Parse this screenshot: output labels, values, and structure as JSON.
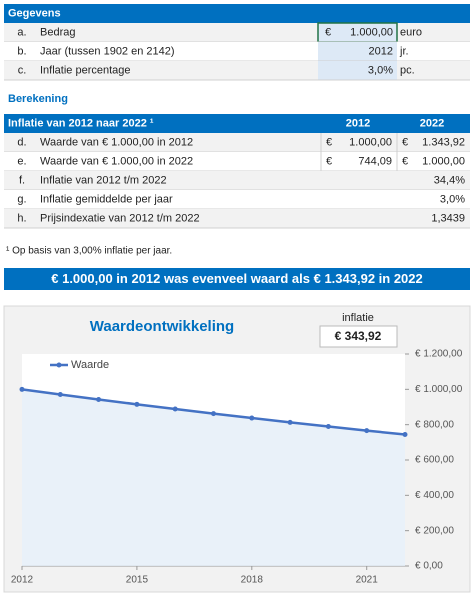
{
  "gegevens": {
    "title": "Gegevens",
    "rows": [
      {
        "letter": "a.",
        "label": "Bedrag",
        "prefix": "€",
        "value": "1.000,00",
        "unit": "euro"
      },
      {
        "letter": "b.",
        "label": "Jaar (tussen 1902 en 2142)",
        "value": "2012",
        "unit": "jr."
      },
      {
        "letter": "c.",
        "label": "Inflatie percentage",
        "value": "3,0%",
        "unit": "pc."
      }
    ]
  },
  "berekening": {
    "title": "Berekening",
    "header": [
      "Inflatie van 2012 naar 2022 ¹",
      "2012",
      "2022"
    ],
    "rows": [
      {
        "letter": "d.",
        "label": "Waarde van € 1.000,00 in 2012",
        "cur1": "€",
        "v1": "1.000,00",
        "cur2": "€",
        "v2": "1.343,92"
      },
      {
        "letter": "e.",
        "label": "Waarde van € 1.000,00 in 2022",
        "cur1": "€",
        "v1": "744,09",
        "cur2": "€",
        "v2": "1.000,00"
      },
      {
        "letter": "f.",
        "label": "Inflatie van 2012 t/m 2022",
        "v2": "34,4%"
      },
      {
        "letter": "g.",
        "label": "Inflatie gemiddelde per jaar",
        "v2": "3,0%"
      },
      {
        "letter": "h.",
        "label": "Prijsindexatie van 2012 t/m 2022",
        "v2": "1,3439"
      }
    ]
  },
  "footnote": "¹ Op basis van 3,00% inflatie per jaar.",
  "banner": "€ 1.000,00 in 2012 was evenveel waard als € 1.343,92 in 2022",
  "chart_data": {
    "type": "line",
    "title": "Waardeontwikkeling",
    "inflatie_label": "inflatie",
    "inflatie_value": "€ 343,92",
    "x": [
      2012,
      2013,
      2014,
      2015,
      2016,
      2017,
      2018,
      2019,
      2020,
      2021,
      2022
    ],
    "series": [
      {
        "name": "Waarde",
        "color": "#4472c4",
        "values": [
          1000,
          970.87,
          942.6,
          915.14,
          888.49,
          862.61,
          837.48,
          813.09,
          789.41,
          766.42,
          744.09
        ]
      }
    ],
    "xlim": [
      2012,
      2022
    ],
    "xticks": [
      2012,
      2015,
      2018,
      2021
    ],
    "ylim": [
      0,
      1200
    ],
    "yticks": [
      {
        "value": 0,
        "label": "€ 0,00"
      },
      {
        "value": 200,
        "label": "€ 200,00"
      },
      {
        "value": 400,
        "label": "€ 400,00"
      },
      {
        "value": 600,
        "label": "€ 600,00"
      },
      {
        "value": 800,
        "label": "€ 800,00"
      },
      {
        "value": 1000,
        "label": "€ 1.000,00"
      },
      {
        "value": 1200,
        "label": "€ 1.200,00"
      }
    ],
    "legend": "top-left",
    "grid": false
  }
}
